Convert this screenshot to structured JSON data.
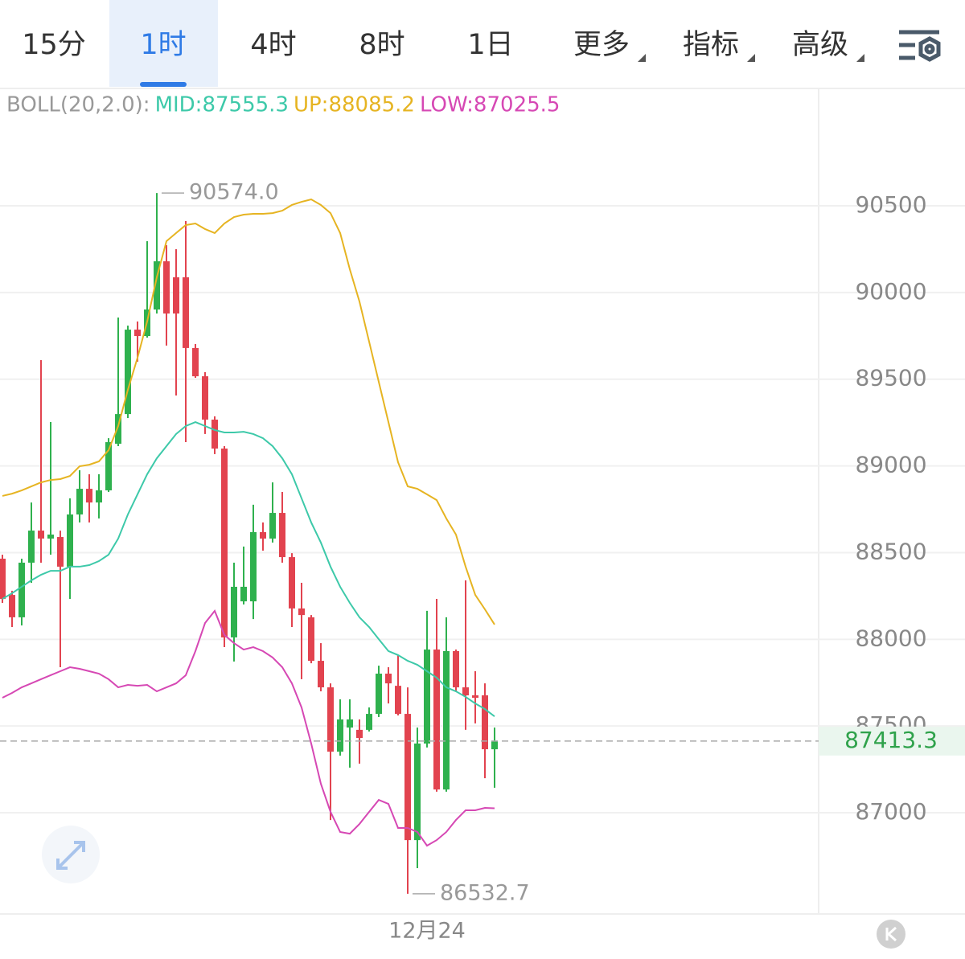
{
  "toolbar": {
    "tabs": [
      "15分",
      "1时",
      "4时",
      "8时",
      "1日",
      "更多",
      "指标",
      "高级"
    ],
    "selected": 1
  },
  "chart_data": {
    "type": "candlestick",
    "indicator": "BOLL(20,2.0):",
    "categories": [
      null,
      null,
      null,
      null,
      null,
      null,
      null,
      null,
      null,
      null,
      null,
      null,
      null,
      null,
      null,
      null,
      null,
      null,
      null,
      null,
      null,
      null,
      null,
      null,
      null,
      null,
      null,
      null,
      null,
      null,
      null,
      null,
      null,
      null,
      null,
      null,
      null,
      null,
      null,
      null,
      null,
      null,
      null,
      null,
      "12月24",
      null,
      null,
      null,
      null,
      null,
      null,
      null
    ],
    "open": [
      88465,
      88256,
      88127,
      88442,
      88627,
      88581,
      88590,
      88419,
      88720,
      88868,
      88789,
      88859,
      89128,
      89299,
      89786,
      89749,
      89902,
      90180,
      90088,
      90088,
      89680,
      89517,
      89267,
      89100,
      88011,
      88219,
      88219,
      88618,
      88581,
      88729,
      88474,
      88178,
      88127,
      87876,
      87723,
      87352,
      87491,
      87478,
      87478,
      87570,
      87802,
      87732,
      87570,
      86842,
      87399,
      87941,
      87134,
      87932,
      87723,
      87677,
      87677,
      87366
    ],
    "high": [
      88488,
      88280,
      88465,
      88789,
      89610,
      89253,
      88627,
      88813,
      88975,
      88952,
      88952,
      89160,
      89856,
      89809,
      89833,
      90296,
      90574,
      90273,
      90250,
      90412,
      89703,
      89541,
      89286,
      89114,
      88442,
      88535,
      88776,
      88674,
      88905,
      88850,
      88497,
      88326,
      88140,
      87978,
      87746,
      87654,
      87654,
      87538,
      87607,
      87848,
      87839,
      87909,
      87723,
      87491,
      88164,
      88233,
      88127,
      87941,
      88340,
      87816,
      87746,
      87491
    ],
    "low": [
      88210,
      88071,
      88080,
      88326,
      88442,
      88488,
      87839,
      88233,
      88674,
      88674,
      88697,
      88850,
      89114,
      89276,
      89601,
      89740,
      89879,
      89694,
      89406,
      89137,
      89508,
      89184,
      89068,
      87955,
      87872,
      88201,
      88117,
      88511,
      88558,
      88442,
      88071,
      87770,
      87862,
      87700,
      86958,
      87329,
      87260,
      87283,
      87468,
      87552,
      87630,
      87561,
      86532.7,
      86680,
      87376,
      87121,
      87121,
      87700,
      87478,
      87515,
      87199,
      87144
    ],
    "close": [
      88233,
      88127,
      88442,
      88627,
      88581,
      88604,
      88419,
      88720,
      88868,
      88789,
      88859,
      89137,
      89299,
      89786,
      89749,
      89902,
      90180,
      89879,
      89879,
      89680,
      89517,
      89267,
      89100,
      88011,
      88303,
      88303,
      88618,
      88581,
      88729,
      88474,
      88178,
      88140,
      87876,
      87723,
      87352,
      87538,
      87538,
      87431,
      87570,
      87802,
      87746,
      87570,
      86842,
      87399,
      87941,
      87134,
      87932,
      87723,
      87677,
      87663,
      87366,
      87413.3
    ],
    "up_color": "#2fb14e",
    "down_color": "#e2434f",
    "bands": [
      {
        "label": "MID:87555.3",
        "color": "#3dc9a9",
        "values": [
          88233,
          88266,
          88303,
          88340,
          88372,
          88395,
          88395,
          88419,
          88419,
          88428,
          88451,
          88488,
          88581,
          88720,
          88836,
          88952,
          89044,
          89114,
          89184,
          89230,
          89253,
          89230,
          89207,
          89193,
          89193,
          89197,
          89184,
          89160,
          89114,
          89044,
          88952,
          88813,
          88674,
          88558,
          88419,
          88303,
          88210,
          88127,
          88071,
          88001,
          87932,
          87909,
          87876,
          87853,
          87816,
          87779,
          87723,
          87700,
          87668,
          87630,
          87598,
          87555.3
        ]
      },
      {
        "label": "UP:88085.2",
        "color": "#e6b422",
        "values": [
          88827,
          88840,
          88859,
          88882,
          88905,
          88919,
          88924,
          88942,
          88998,
          89007,
          89026,
          89091,
          89230,
          89439,
          89624,
          89833,
          90088,
          90296,
          90343,
          90389,
          90398,
          90366,
          90343,
          90398,
          90435,
          90449,
          90454,
          90454,
          90458,
          90472,
          90505,
          90523,
          90537,
          90505,
          90458,
          90343,
          90134,
          89948,
          89717,
          89485,
          89253,
          89021,
          88882,
          88868,
          88836,
          88803,
          88697,
          88604,
          88419,
          88256,
          88173,
          88085.2
        ]
      },
      {
        "label": "LOW:87025.5",
        "color": "#d648b4",
        "values": [
          87663,
          87691,
          87723,
          87746,
          87770,
          87793,
          87816,
          87839,
          87830,
          87816,
          87802,
          87770,
          87723,
          87737,
          87732,
          87737,
          87700,
          87723,
          87746,
          87793,
          87932,
          88094,
          88164,
          88025,
          87978,
          87941,
          87955,
          87932,
          87895,
          87839,
          87746,
          87607,
          87399,
          87167,
          87005,
          86889,
          86879,
          86935,
          87005,
          87074,
          87051,
          86912,
          86912,
          86889,
          86810,
          86842,
          86889,
          86958,
          87014,
          87014,
          87028,
          87025.5
        ]
      }
    ],
    "ylim": [
      86416,
      91177
    ],
    "yticks": [
      87000,
      87500,
      88000,
      88500,
      89000,
      89500,
      90000,
      90500
    ],
    "grid": true,
    "last_price": {
      "value": 87413.3,
      "label": "87413.3"
    },
    "annotations": [
      {
        "value": 90574,
        "label": "90574.0"
      },
      {
        "value": 86532.7,
        "label": "86532.7"
      }
    ]
  }
}
